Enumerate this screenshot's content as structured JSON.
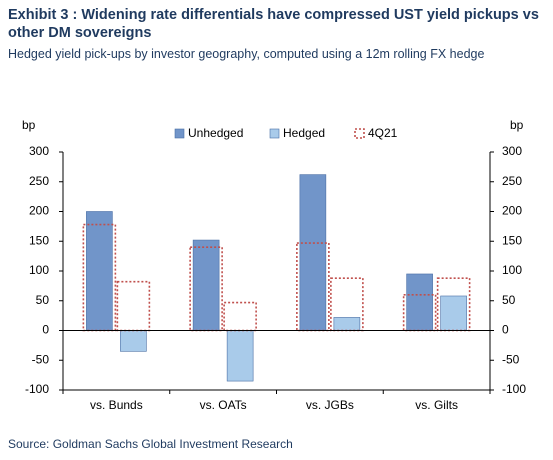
{
  "chart_data": {
    "type": "bar",
    "title": "Exhibit 3 : Widening rate differentials have compressed UST yield pickups vs other DM sovereigns",
    "subtitle": "Hedged yield pick-ups by investor geography, computed using a 12m rolling FX hedge",
    "source": "Source: Goldman Sachs Global Investment Research",
    "y_label": "bp",
    "y2_label": "bp",
    "categories": [
      "vs. Bunds",
      "vs. OATs",
      "vs. JGBs",
      "vs. Gilts"
    ],
    "series": [
      {
        "name": "Unhedged",
        "color": "#7195c9",
        "values": [
          200,
          152,
          262,
          95
        ]
      },
      {
        "name": "Hedged",
        "color": "#a9cbea",
        "values": [
          -35,
          -85,
          22,
          58
        ]
      }
    ],
    "reference": {
      "name": "4Q21",
      "color": "#c0504d",
      "unhedged": [
        178,
        140,
        147,
        60
      ],
      "hedged": [
        82,
        47,
        88,
        88
      ]
    },
    "ylim": [
      -100,
      300
    ],
    "yticks": [
      -100,
      -50,
      0,
      50,
      100,
      150,
      200,
      250,
      300
    ],
    "y2lim": [
      -100,
      300
    ],
    "y2ticks": [
      -100,
      -50,
      0,
      50,
      100,
      150,
      200,
      250,
      300
    ]
  }
}
